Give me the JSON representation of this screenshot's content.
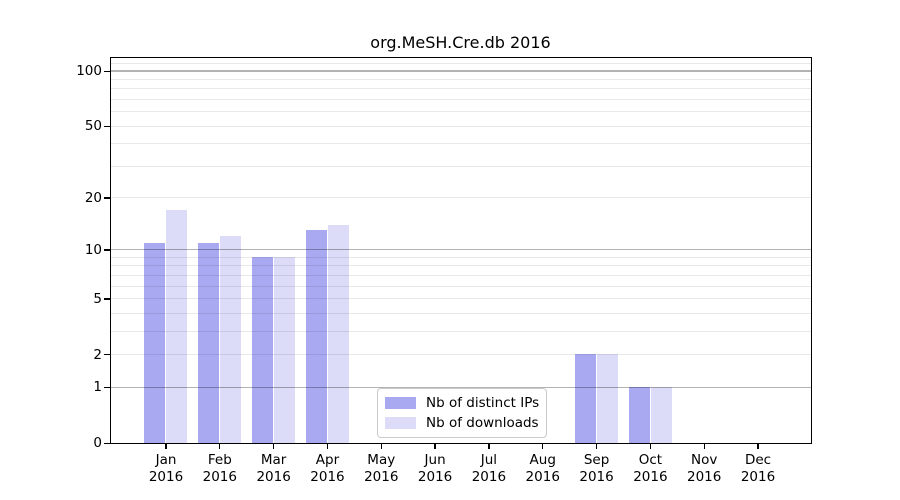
{
  "title": "org.MeSH.Cre.db 2016",
  "colors": {
    "distinct_ips": "#a9a9f2",
    "downloads": "#dcdcf8",
    "grid_major": "rgba(0,0,0,0.30)",
    "grid_minor": "rgba(0,0,0,0.09)",
    "spine": "#000000",
    "text": "#000000",
    "legend_border": "#cbcbcb"
  },
  "legend": {
    "items": [
      {
        "key": "distinct_ips",
        "label": "Nb of distinct IPs"
      },
      {
        "key": "downloads",
        "label": "Nb of downloads"
      }
    ]
  },
  "y_axis": {
    "scale": "log10(1+value)",
    "tick_labels": [
      "0",
      "1",
      "2",
      "5",
      "10",
      "20",
      "50",
      "100"
    ],
    "tick_values": [
      0,
      1,
      2,
      5,
      10,
      20,
      50,
      100
    ],
    "gridlines_major": [
      1,
      10,
      100
    ],
    "gridlines_minor": [
      2,
      3,
      4,
      5,
      6,
      7,
      8,
      9,
      20,
      30,
      40,
      50,
      60,
      70,
      80,
      90,
      110
    ]
  },
  "chart_data": {
    "type": "bar",
    "title": "org.MeSH.Cre.db 2016",
    "categories": [
      "Jan 2016",
      "Feb 2016",
      "Mar 2016",
      "Apr 2016",
      "May 2016",
      "Jun 2016",
      "Jul 2016",
      "Aug 2016",
      "Sep 2016",
      "Oct 2016",
      "Nov 2016",
      "Dec 2016"
    ],
    "series": [
      {
        "name": "Nb of distinct IPs",
        "key": "distinct_ips",
        "values": [
          11,
          11,
          9,
          13,
          0,
          0,
          0,
          0,
          2,
          1,
          0,
          0
        ]
      },
      {
        "name": "Nb of downloads",
        "key": "downloads",
        "values": [
          17,
          12,
          9,
          14,
          0,
          0,
          0,
          0,
          2,
          1,
          0,
          0
        ]
      }
    ],
    "yscale": "log1p",
    "yticks": [
      0,
      1,
      2,
      5,
      10,
      20,
      50,
      100
    ],
    "ylim": [
      0,
      118
    ],
    "xlabel": "",
    "ylabel": "",
    "grid": "on",
    "legend_position": "lower center"
  }
}
